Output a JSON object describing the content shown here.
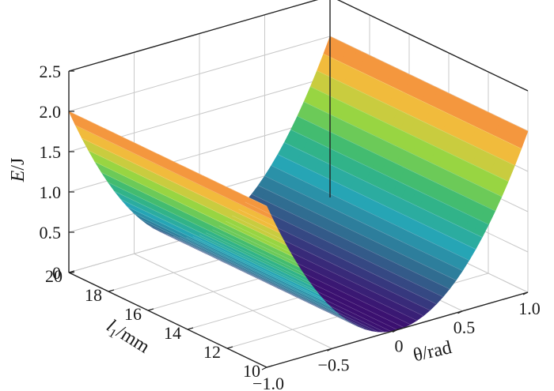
{
  "chart_data": {
    "type": "surface3d",
    "title": "",
    "x_axis": {
      "label_main": "θ",
      "label_unit": "/rad",
      "range": [
        -1.0,
        1.0
      ],
      "ticks": [
        -1.0,
        -0.5,
        0,
        0.5,
        1.0
      ],
      "tick_labels": [
        "−1.0",
        "−0.5",
        "0",
        "0.5",
        "1.0"
      ]
    },
    "y_axis": {
      "label_main": "l",
      "label_sub": "1",
      "label_unit": "/mm",
      "range": [
        10,
        20
      ],
      "ticks": [
        10,
        12,
        14,
        16,
        18,
        20
      ],
      "tick_labels": [
        "10",
        "12",
        "14",
        "16",
        "18",
        "20"
      ]
    },
    "z_axis": {
      "label_main": "E",
      "label_unit": "/J",
      "range": [
        0,
        2.5
      ],
      "ticks": [
        0,
        0.5,
        1.0,
        1.5,
        2.0,
        2.5
      ],
      "tick_labels": [
        "0",
        "0.5",
        "1.0",
        "1.5",
        "2.0",
        "2.5"
      ]
    },
    "surface": {
      "description_values": {
        "E_at_theta_pm1_l_20": 2.0,
        "E_at_theta_pm1_l_10": 2.0,
        "E_at_theta_0": 0.0
      },
      "colormap": [
        "#3b0f70",
        "#31688e",
        "#26a6b5",
        "#35b779",
        "#90d743",
        "#f0c43c",
        "#f5853f"
      ],
      "grid_on": true
    }
  }
}
